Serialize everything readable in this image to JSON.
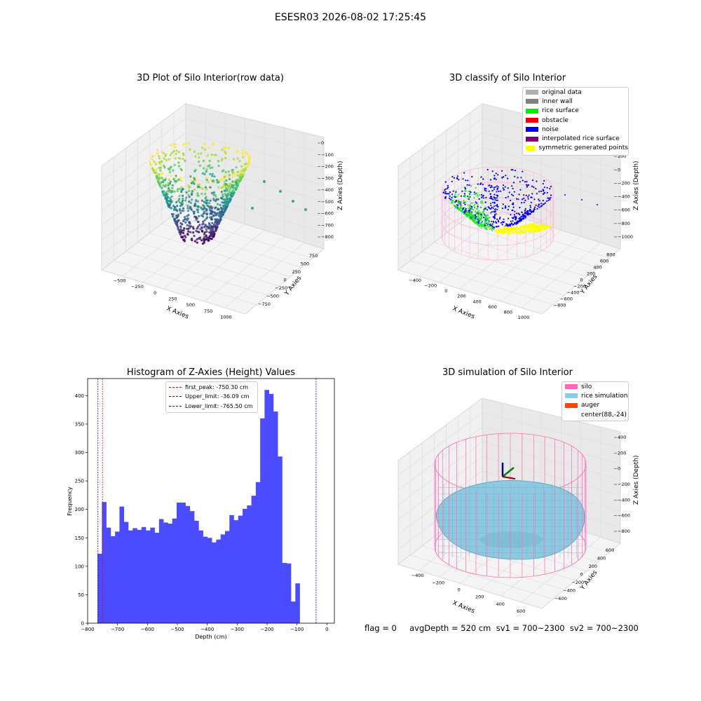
{
  "suptitle": "ESESR03 2026-08-02 17:25:45",
  "panels": {
    "raw": {
      "title": "3D Plot of Silo Interior(row data)",
      "xlabel": "X Axies",
      "ylabel": "Y Axies",
      "zlabel": "Z Axies (Depth)",
      "xticks": [
        "−500",
        "−250",
        "0",
        "250",
        "500",
        "750",
        "1000"
      ],
      "yticks": [
        "750",
        "500",
        "250",
        "0",
        "−250",
        "−500",
        "−750"
      ],
      "zticks": [
        "0",
        "−100",
        "−200",
        "−300",
        "−400",
        "−500",
        "−600",
        "−700",
        "−800"
      ]
    },
    "classify": {
      "title": "3D classify of Silo Interior",
      "xlabel": "X Axies",
      "ylabel": "Y Axies",
      "zlabel": "Z Axies (Depth)",
      "xticks": [
        "−400",
        "−200",
        "0",
        "200",
        "400",
        "600",
        "800",
        "1000"
      ],
      "yticks": [
        "800",
        "600",
        "400",
        "200",
        "0",
        "−200",
        "−400",
        "−600",
        "−800"
      ],
      "zticks": [
        "400",
        "200",
        "0",
        "−200",
        "−400",
        "−600",
        "−800",
        "−1000"
      ],
      "legend": [
        {
          "label": "original data",
          "color": "#b0b0b0"
        },
        {
          "label": "inner wall",
          "color": "#808080"
        },
        {
          "label": "rice surface",
          "color": "#00ee00"
        },
        {
          "label": "obstacle",
          "color": "#ee0000"
        },
        {
          "label": "noise",
          "color": "#0000ee"
        },
        {
          "label": "interpolated rice surface",
          "color": "#800080"
        },
        {
          "label": "symmetric generated points",
          "color": "#ffff00"
        }
      ]
    },
    "simulation": {
      "title": "3D simulation of Silo Interior",
      "xlabel": "X Axies",
      "ylabel": "Y Axies",
      "zlabel": "Z Axies (Depth)",
      "xticks": [
        "−400",
        "−200",
        "0",
        "200",
        "400",
        "600"
      ],
      "yticks": [
        "600",
        "400",
        "200",
        "0",
        "−200",
        "−400",
        "−600"
      ],
      "zticks": [
        "400",
        "200",
        "0",
        "−200",
        "−400",
        "−600",
        "−800"
      ],
      "legend": [
        {
          "label": "silo",
          "color": "#ff69b4"
        },
        {
          "label": "rice simulation",
          "color": "#87ceeb"
        },
        {
          "label": "auger",
          "color": "#ff4500"
        },
        {
          "label": "center(88,-24)",
          "color": ""
        }
      ]
    }
  },
  "status_line": "flag = 0     avgDepth = 520 cm  sv1 = 700~2300  sv2 = 700~2300",
  "chart_data": [
    {
      "type": "bar",
      "title": "Histogram of Z-Axies (Height) Values",
      "xlabel": "Depth (cm)",
      "ylabel": "Frequency",
      "xlim": [
        -800,
        25
      ],
      "ylim": [
        0,
        430
      ],
      "xticks": [
        -800,
        -700,
        -600,
        -500,
        -400,
        -300,
        -200,
        -100,
        0
      ],
      "yticks": [
        0,
        50,
        100,
        150,
        200,
        250,
        300,
        350,
        400
      ],
      "bar_color": "#4b4bff",
      "bin_start": -767,
      "bin_width": 14.7,
      "values": [
        122,
        213,
        168,
        153,
        161,
        205,
        178,
        163,
        167,
        164,
        169,
        163,
        168,
        159,
        183,
        177,
        175,
        184,
        212,
        212,
        206,
        197,
        180,
        163,
        152,
        150,
        142,
        147,
        156,
        162,
        190,
        181,
        189,
        201,
        207,
        224,
        248,
        360,
        410,
        403,
        372,
        293,
        106,
        105,
        38,
        70
      ],
      "reference_lines": [
        {
          "label": "first_peak: -750.30 cm",
          "x": -750.3,
          "color": "#ff0000"
        },
        {
          "label": "Upper_limit: -36.09 cm",
          "x": -36.09,
          "color": "#0000ff"
        },
        {
          "label": "Lower_limit: -765.50 cm",
          "x": -765.5,
          "color": "#0000ff"
        }
      ]
    }
  ]
}
